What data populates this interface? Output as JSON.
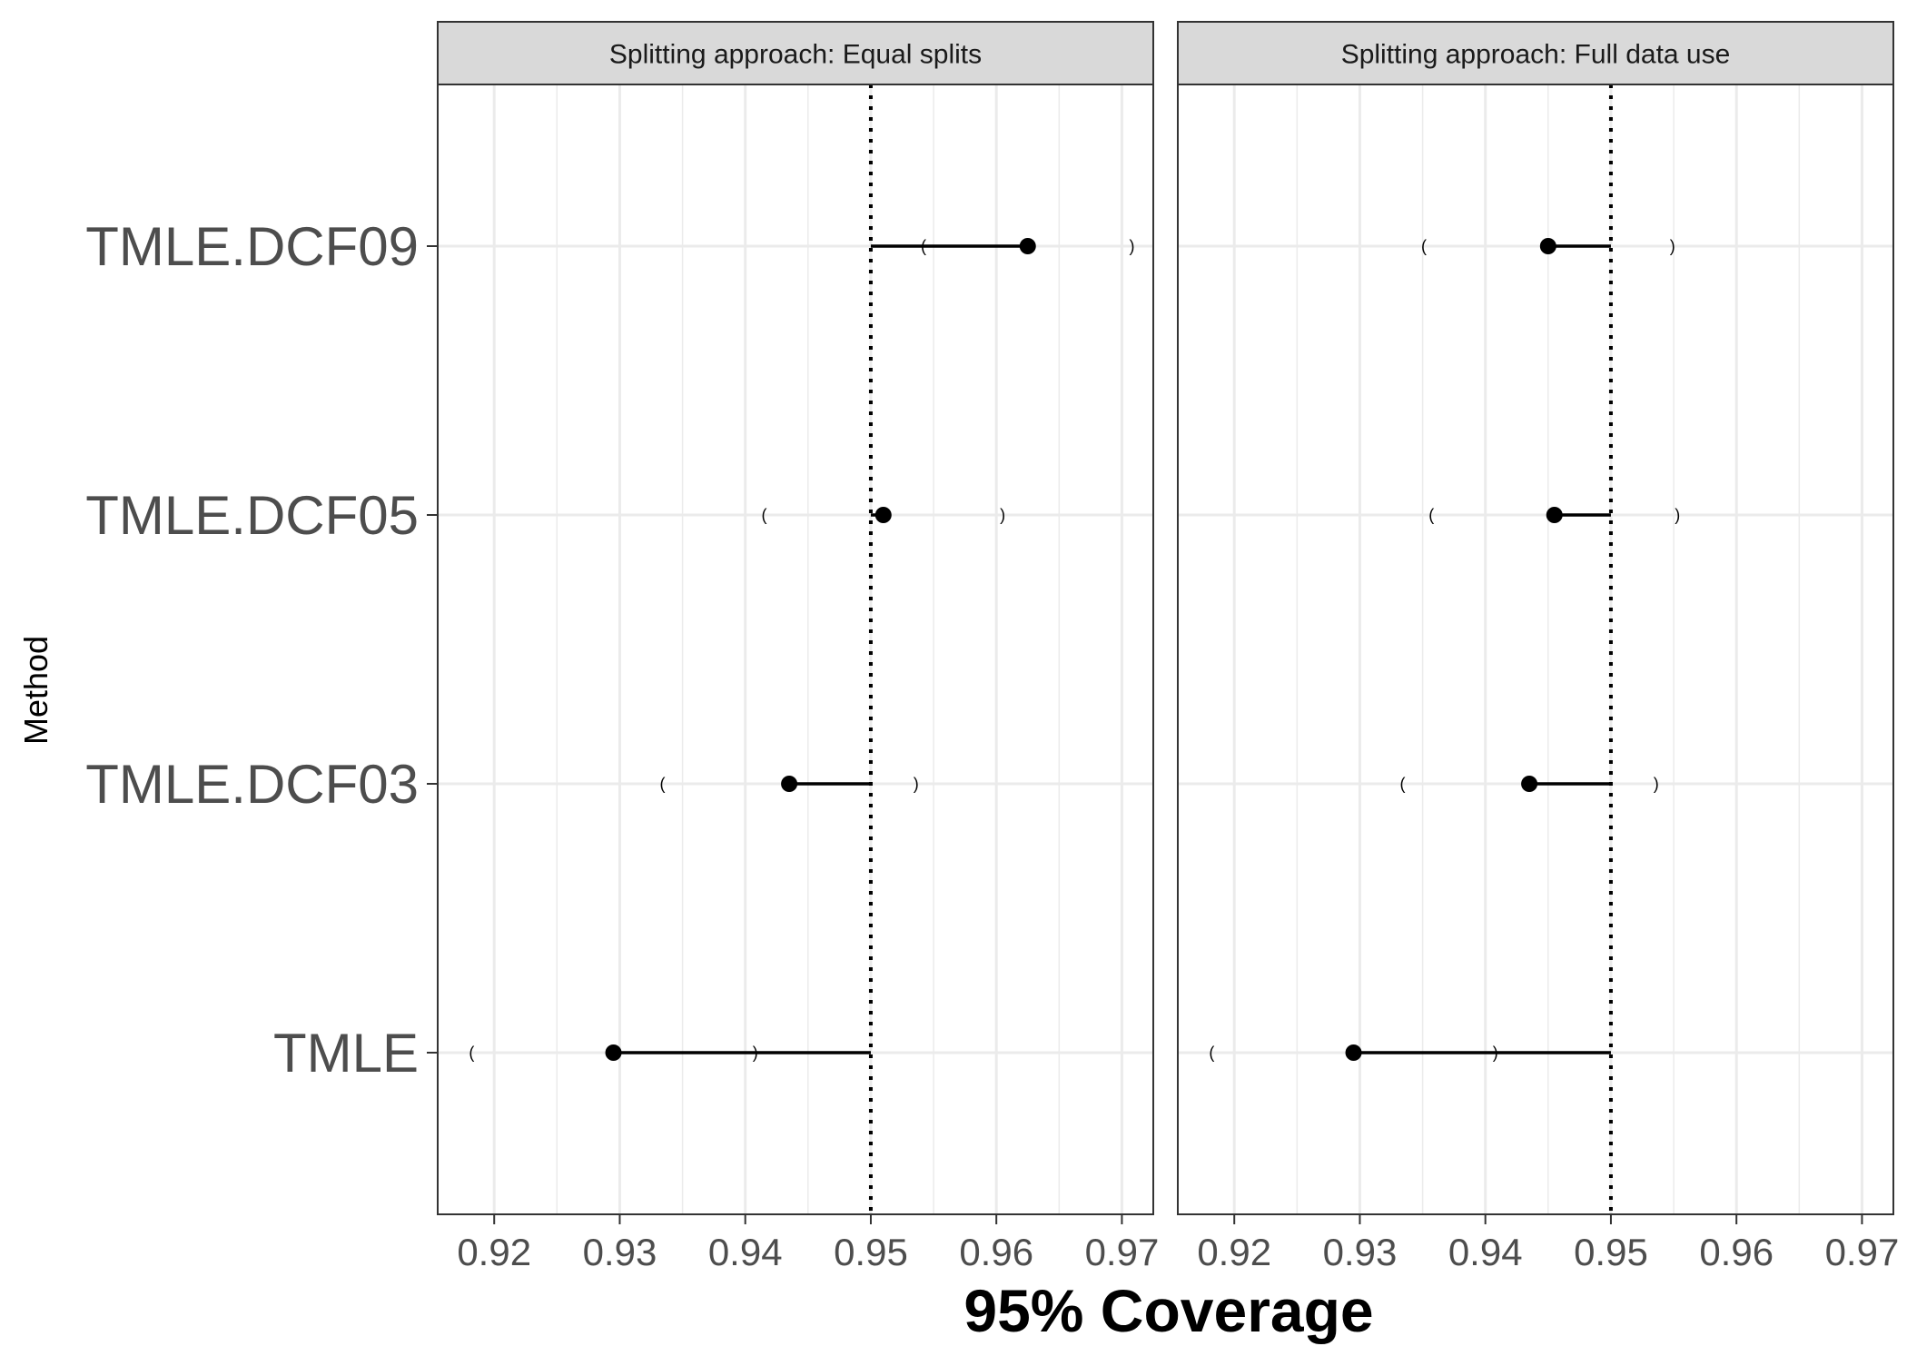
{
  "chart_data": {
    "type": "scatter",
    "ylabel": "Method",
    "xlabel": "95% Coverage",
    "categories": [
      "TMLE.DCF09",
      "TMLE.DCF05",
      "TMLE.DCF03",
      "TMLE"
    ],
    "x_ticks": [
      "0.92",
      "0.93",
      "0.94",
      "0.95",
      "0.96",
      "0.97"
    ],
    "xlim": [
      0.9155,
      0.9725
    ],
    "reference_line": 0.95,
    "colors": {
      "point": "#000000",
      "grid": "#ebebeb",
      "strip_fill": "#d9d9d9",
      "reference": "#000000"
    },
    "panels": [
      {
        "strip_label": "Splitting approach: Equal splits",
        "points": [
          {
            "method": "TMLE.DCF09",
            "coverage": 0.9625,
            "ci_lower": 0.9542,
            "ci_upper": 0.9708
          },
          {
            "method": "TMLE.DCF05",
            "coverage": 0.951,
            "ci_lower": 0.9415,
            "ci_upper": 0.9605
          },
          {
            "method": "TMLE.DCF03",
            "coverage": 0.9435,
            "ci_lower": 0.9334,
            "ci_upper": 0.9536
          },
          {
            "method": "TMLE",
            "coverage": 0.9295,
            "ci_lower": 0.9182,
            "ci_upper": 0.9408
          }
        ]
      },
      {
        "strip_label": "Splitting approach: Full data use",
        "points": [
          {
            "method": "TMLE.DCF09",
            "coverage": 0.945,
            "ci_lower": 0.9351,
            "ci_upper": 0.9549
          },
          {
            "method": "TMLE.DCF05",
            "coverage": 0.9455,
            "ci_lower": 0.9357,
            "ci_upper": 0.9553
          },
          {
            "method": "TMLE.DCF03",
            "coverage": 0.9435,
            "ci_lower": 0.9334,
            "ci_upper": 0.9536
          },
          {
            "method": "TMLE",
            "coverage": 0.9295,
            "ci_lower": 0.9182,
            "ci_upper": 0.9408
          }
        ]
      }
    ]
  }
}
